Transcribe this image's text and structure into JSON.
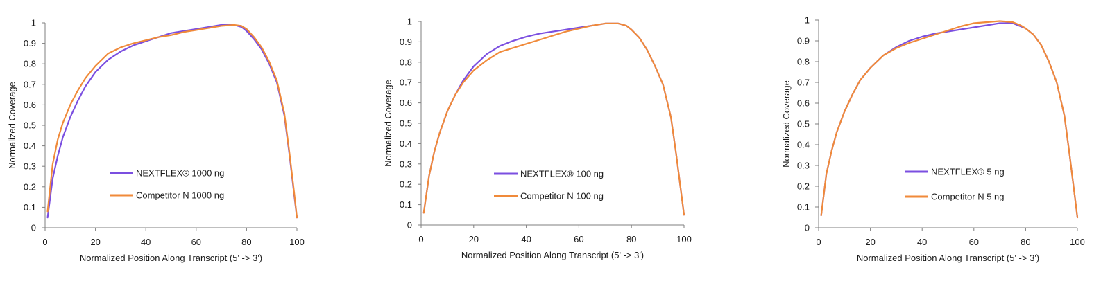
{
  "colors": {
    "nextflex": "#7b4fe0",
    "competitor": "#f08a3a",
    "axis": "#7f7f7f"
  },
  "chart_data": [
    {
      "type": "line",
      "xlabel": "Normalized Position Along Transcript (5' -> 3')",
      "ylabel": "Normalized Coverage",
      "xlim": [
        0,
        100
      ],
      "ylim": [
        0,
        1
      ],
      "xticks": [
        "0",
        "20",
        "40",
        "60",
        "80",
        "100"
      ],
      "yticks": [
        "0",
        "0.1",
        "0.2",
        "0.3",
        "0.4",
        "0.5",
        "0.6",
        "0.7",
        "0.8",
        "0.9",
        "1"
      ],
      "grid": false,
      "legend": "center-left",
      "series": [
        {
          "name": "NEXTFLEX® 1000 ng",
          "color": "#7b4fe0",
          "x": [
            1,
            3,
            5,
            7,
            10,
            13,
            16,
            20,
            25,
            30,
            35,
            40,
            45,
            50,
            55,
            60,
            65,
            70,
            75,
            78,
            80,
            83,
            86,
            89,
            92,
            95,
            97,
            99,
            100
          ],
          "y": [
            0.05,
            0.24,
            0.35,
            0.44,
            0.54,
            0.62,
            0.69,
            0.76,
            0.82,
            0.86,
            0.89,
            0.91,
            0.93,
            0.95,
            0.96,
            0.97,
            0.98,
            0.99,
            0.99,
            0.98,
            0.96,
            0.92,
            0.87,
            0.8,
            0.71,
            0.55,
            0.36,
            0.15,
            0.05
          ]
        },
        {
          "name": "Competitor N 1000 ng",
          "color": "#f08a3a",
          "x": [
            1,
            3,
            5,
            7,
            10,
            13,
            16,
            20,
            25,
            30,
            35,
            40,
            45,
            50,
            55,
            60,
            65,
            70,
            75,
            78,
            80,
            83,
            86,
            89,
            92,
            95,
            97,
            99,
            100
          ],
          "y": [
            0.08,
            0.31,
            0.43,
            0.51,
            0.6,
            0.67,
            0.73,
            0.79,
            0.85,
            0.88,
            0.9,
            0.915,
            0.93,
            0.94,
            0.955,
            0.965,
            0.975,
            0.985,
            0.99,
            0.985,
            0.97,
            0.93,
            0.88,
            0.81,
            0.72,
            0.56,
            0.37,
            0.16,
            0.05
          ]
        }
      ]
    },
    {
      "type": "line",
      "xlabel": "Normalized Position Along Transcript (5' -> 3')",
      "ylabel": "Normalized Coverage",
      "xlim": [
        0,
        100
      ],
      "ylim": [
        0,
        1
      ],
      "xticks": [
        "0",
        "20",
        "40",
        "60",
        "80",
        "100"
      ],
      "yticks": [
        "0",
        "0.1",
        "0.2",
        "0.3",
        "0.4",
        "0.5",
        "0.6",
        "0.7",
        "0.8",
        "0.9",
        "1"
      ],
      "grid": false,
      "legend": "center-left",
      "series": [
        {
          "name": "NEXTFLEX® 100 ng",
          "color": "#7b4fe0",
          "x": [
            1,
            3,
            5,
            7,
            10,
            13,
            16,
            20,
            25,
            30,
            35,
            40,
            45,
            50,
            55,
            60,
            65,
            70,
            75,
            78,
            80,
            83,
            86,
            89,
            92,
            95,
            97,
            99,
            100
          ],
          "y": [
            0.06,
            0.24,
            0.36,
            0.45,
            0.56,
            0.64,
            0.71,
            0.78,
            0.84,
            0.88,
            0.905,
            0.925,
            0.94,
            0.95,
            0.96,
            0.97,
            0.98,
            0.99,
            0.99,
            0.98,
            0.96,
            0.92,
            0.86,
            0.78,
            0.69,
            0.53,
            0.35,
            0.15,
            0.05
          ]
        },
        {
          "name": "Competitor N 100 ng",
          "color": "#f08a3a",
          "x": [
            1,
            3,
            5,
            7,
            10,
            13,
            16,
            20,
            25,
            30,
            35,
            40,
            45,
            50,
            55,
            60,
            65,
            70,
            75,
            78,
            80,
            83,
            86,
            89,
            92,
            95,
            97,
            99,
            100
          ],
          "y": [
            0.06,
            0.24,
            0.36,
            0.45,
            0.56,
            0.64,
            0.7,
            0.76,
            0.81,
            0.85,
            0.87,
            0.89,
            0.91,
            0.93,
            0.95,
            0.965,
            0.98,
            0.99,
            0.99,
            0.98,
            0.96,
            0.92,
            0.86,
            0.78,
            0.69,
            0.53,
            0.35,
            0.15,
            0.05
          ]
        }
      ]
    },
    {
      "type": "line",
      "xlabel": "Normalized Position Along Transcript (5' -> 3')",
      "ylabel": "Normalized Coverage",
      "xlim": [
        0,
        100
      ],
      "ylim": [
        0,
        1
      ],
      "xticks": [
        "0",
        "20",
        "40",
        "60",
        "80",
        "100"
      ],
      "yticks": [
        "0",
        "0.1",
        "0.2",
        "0.3",
        "0.4",
        "0.5",
        "0.6",
        "0.7",
        "0.8",
        "0.9",
        "1"
      ],
      "grid": false,
      "legend": "center-left",
      "series": [
        {
          "name": "NEXTFLEX® 5 ng",
          "color": "#7b4fe0",
          "x": [
            1,
            3,
            5,
            7,
            10,
            13,
            16,
            20,
            25,
            30,
            35,
            40,
            45,
            50,
            55,
            60,
            65,
            70,
            75,
            78,
            80,
            83,
            86,
            89,
            92,
            95,
            97,
            99,
            100
          ],
          "y": [
            0.06,
            0.26,
            0.37,
            0.46,
            0.56,
            0.64,
            0.71,
            0.77,
            0.83,
            0.87,
            0.9,
            0.92,
            0.935,
            0.945,
            0.955,
            0.965,
            0.975,
            0.985,
            0.985,
            0.97,
            0.96,
            0.93,
            0.88,
            0.8,
            0.7,
            0.54,
            0.35,
            0.15,
            0.05
          ]
        },
        {
          "name": "Competitor N 5 ng",
          "color": "#f08a3a",
          "x": [
            1,
            3,
            5,
            7,
            10,
            13,
            16,
            20,
            25,
            30,
            35,
            40,
            45,
            50,
            55,
            60,
            65,
            70,
            75,
            78,
            80,
            83,
            86,
            89,
            92,
            95,
            97,
            99,
            100
          ],
          "y": [
            0.06,
            0.26,
            0.37,
            0.46,
            0.56,
            0.64,
            0.71,
            0.77,
            0.83,
            0.865,
            0.89,
            0.91,
            0.93,
            0.95,
            0.97,
            0.985,
            0.99,
            0.995,
            0.99,
            0.975,
            0.96,
            0.93,
            0.88,
            0.8,
            0.7,
            0.54,
            0.35,
            0.15,
            0.05
          ]
        }
      ]
    }
  ]
}
